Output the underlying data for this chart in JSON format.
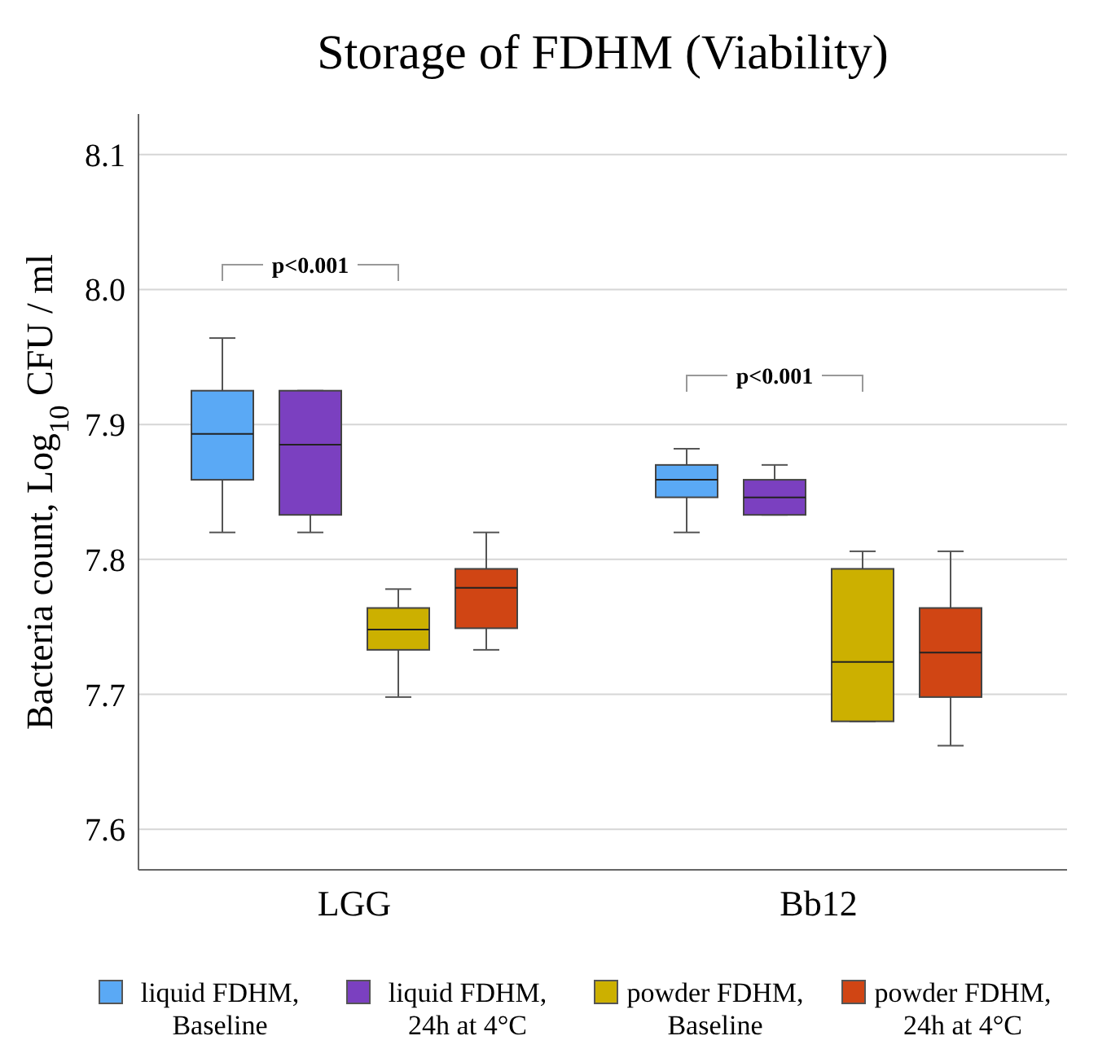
{
  "chart_data": {
    "type": "box",
    "title": "Storage of FDHM (Viability)",
    "ylabel": "Bacteria count, Log$_{10}$ CFU / ml",
    "categories": [
      "LGG",
      "Bb12"
    ],
    "series": [
      {
        "name": "liquid FDHM, Baseline",
        "color": "#5aa9f5",
        "boxes": [
          {
            "low": 7.82,
            "q1": 7.859,
            "median": 7.893,
            "q3": 7.925,
            "high": 7.964
          },
          {
            "low": 7.82,
            "q1": 7.846,
            "median": 7.859,
            "q3": 7.87,
            "high": 7.882
          }
        ]
      },
      {
        "name": "liquid FDHM, 24h at 4°C",
        "color": "#7b40c0",
        "boxes": [
          {
            "low": 7.82,
            "q1": 7.833,
            "median": 7.885,
            "q3": 7.925,
            "high": 7.925
          },
          {
            "low": 7.833,
            "q1": 7.833,
            "median": 7.846,
            "q3": 7.859,
            "high": 7.87
          }
        ]
      },
      {
        "name": "powder FDHM, Baseline",
        "color": "#ccb000",
        "boxes": [
          {
            "low": 7.698,
            "q1": 7.733,
            "median": 7.748,
            "q3": 7.764,
            "high": 7.778
          },
          {
            "low": 7.68,
            "q1": 7.68,
            "median": 7.724,
            "q3": 7.793,
            "high": 7.806
          }
        ]
      },
      {
        "name": "powder FDHM, 24h at 4°C",
        "color": "#d04514",
        "boxes": [
          {
            "low": 7.733,
            "q1": 7.749,
            "median": 7.779,
            "q3": 7.793,
            "high": 7.82
          },
          {
            "low": 7.662,
            "q1": 7.698,
            "median": 7.731,
            "q3": 7.764,
            "high": 7.806
          }
        ]
      }
    ],
    "ylim": [
      7.57,
      8.13
    ],
    "yticks": [
      {
        "value": 7.6,
        "label": "7.6"
      },
      {
        "value": 7.7,
        "label": "7.7"
      },
      {
        "value": 7.8,
        "label": "7.8"
      },
      {
        "value": 7.9,
        "label": "7.9"
      },
      {
        "value": 8.0,
        "label": "8.0"
      },
      {
        "value": 8.1,
        "label": "8.1"
      }
    ],
    "grid": "y",
    "legend": "bottom",
    "annotations": [
      "p<0.001",
      "p<0.001"
    ]
  }
}
